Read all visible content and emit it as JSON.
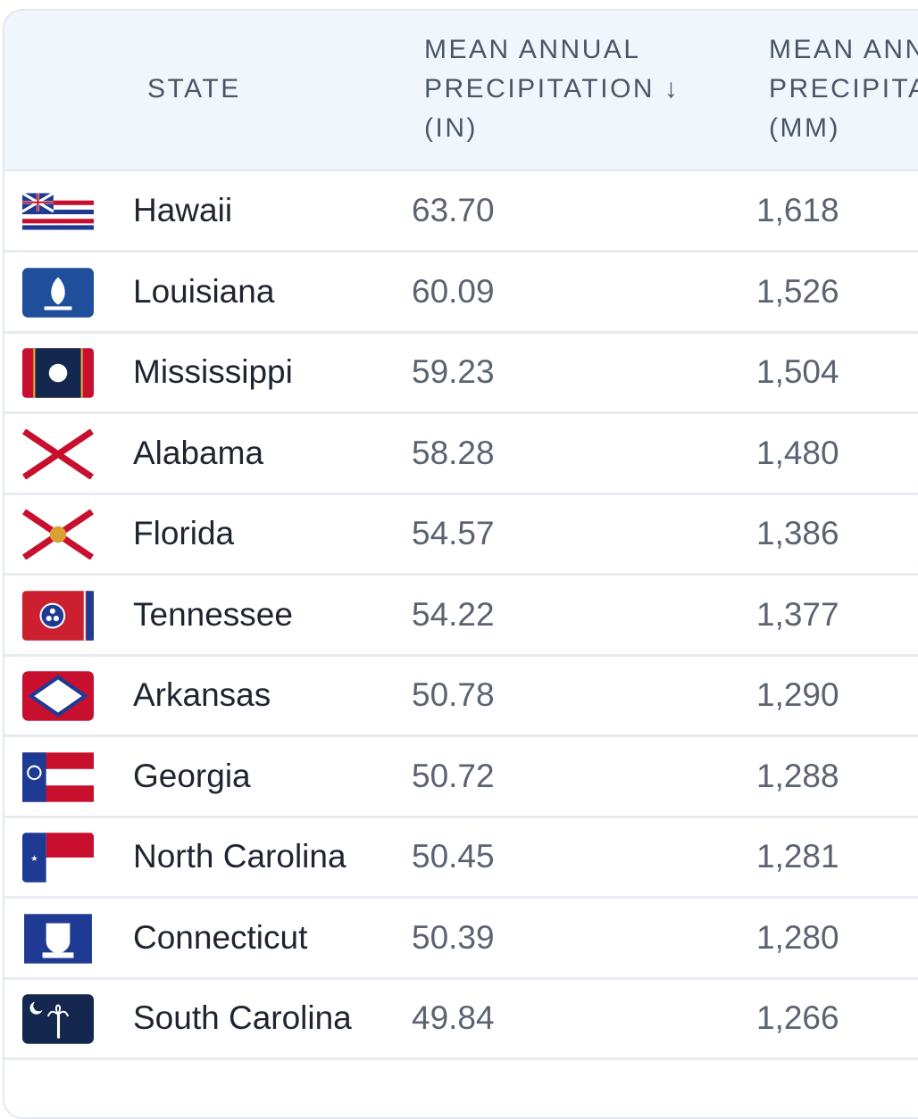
{
  "table": {
    "columns": [
      {
        "lines": [
          "STATE"
        ]
      },
      {
        "lines": [
          "MEAN ANNUAL",
          "PRECIPITATION ↓",
          "(IN)"
        ]
      },
      {
        "lines": [
          "MEAN ANNUAL",
          "PRECIPITATION",
          "(MM)"
        ]
      }
    ],
    "rows": [
      [
        "Hawaii",
        "63.70",
        "1,618"
      ],
      [
        "Louisiana",
        "60.09",
        "1,526"
      ],
      [
        "Mississippi",
        "59.23",
        "1,504"
      ],
      [
        "Alabama",
        "58.28",
        "1,480"
      ],
      [
        "Florida",
        "54.57",
        "1,386"
      ],
      [
        "Tennessee",
        "54.22",
        "1,377"
      ],
      [
        "Arkansas",
        "50.78",
        "1,290"
      ],
      [
        "Georgia",
        "50.72",
        "1,288"
      ],
      [
        "North Carolina",
        "50.45",
        "1,281"
      ],
      [
        "Connecticut",
        "50.39",
        "1,280"
      ],
      [
        "South Carolina",
        "49.84",
        "1,266"
      ]
    ]
  }
}
